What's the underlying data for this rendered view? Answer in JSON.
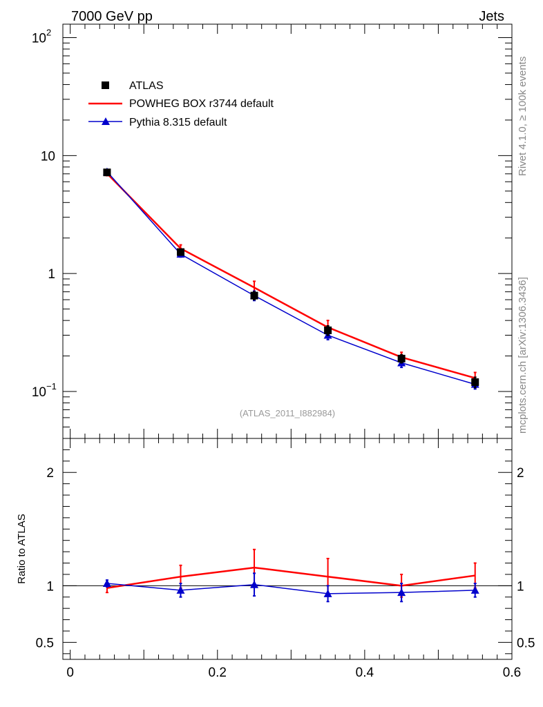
{
  "header": {
    "left": "7000 GeV pp",
    "right": "Jets"
  },
  "side_labels": {
    "rivet": "Rivet 4.1.0, ≥ 100k events",
    "mcplots": "mcplots.cern.ch [arXiv:1306.3436]"
  },
  "analysis_tag": "(ATLAS_2011_I882984)",
  "legend": [
    {
      "label": "ATLAS",
      "marker": "square",
      "color": "#000000"
    },
    {
      "label": "POWHEG BOX r3744 default",
      "marker": "line",
      "color": "#ff0000"
    },
    {
      "label": "Pythia 8.315 default",
      "marker": "triangle",
      "color": "#0000cc"
    }
  ],
  "chart_data": [
    {
      "type": "line",
      "panel": "main",
      "yscale": "log",
      "xlim": [
        -0.01,
        0.6
      ],
      "ylim": [
        0.04,
        130
      ],
      "ytick_labels": [
        {
          "value": 0.1,
          "base": "10",
          "exp": "−1"
        },
        {
          "value": 1,
          "base": "1",
          "exp": ""
        },
        {
          "value": 10,
          "base": "10",
          "exp": ""
        },
        {
          "value": 100,
          "base": "10",
          "exp": "2"
        }
      ],
      "x": [
        0.05,
        0.15,
        0.25,
        0.35,
        0.45,
        0.55
      ],
      "series": [
        {
          "name": "ATLAS",
          "values": [
            7.2,
            1.52,
            0.65,
            0.33,
            0.19,
            0.12
          ],
          "err": [
            0.25,
            0.08,
            0.05,
            0.03,
            0.015,
            0.012
          ]
        },
        {
          "name": "POWHEG BOX r3744 default",
          "values": [
            7.05,
            1.63,
            0.76,
            0.35,
            0.195,
            0.13
          ],
          "err": [
            0.3,
            0.12,
            0.1,
            0.05,
            0.02,
            0.015
          ]
        },
        {
          "name": "Pythia 8.315 default",
          "values": [
            7.3,
            1.46,
            0.65,
            0.3,
            0.175,
            0.115
          ],
          "err": [
            0.3,
            0.08,
            0.06,
            0.025,
            0.015,
            0.01
          ]
        }
      ]
    },
    {
      "type": "line",
      "panel": "ratio",
      "ylabel": "Ratio to ATLAS",
      "xlim": [
        -0.01,
        0.6
      ],
      "ylim": [
        0.35,
        2.3
      ],
      "yticks": [
        0.5,
        1,
        2
      ],
      "ytick_labels": [
        "0.5",
        "1",
        "2"
      ],
      "xticks": [
        0,
        0.2,
        0.4,
        0.6
      ],
      "xtick_labels": [
        "0",
        "0.2",
        "0.4",
        "0.6"
      ],
      "reference": 1,
      "x": [
        0.05,
        0.15,
        0.25,
        0.35,
        0.45,
        0.55
      ],
      "series": [
        {
          "name": "POWHEG BOX r3744 default",
          "values": [
            0.98,
            1.08,
            1.16,
            1.08,
            1.0,
            1.09
          ],
          "err": [
            0.04,
            0.1,
            0.16,
            0.16,
            0.1,
            0.11
          ]
        },
        {
          "name": "Pythia 8.315 default",
          "values": [
            1.02,
            0.96,
            1.01,
            0.93,
            0.94,
            0.96
          ],
          "err": [
            0.03,
            0.06,
            0.1,
            0.07,
            0.08,
            0.06
          ]
        }
      ]
    }
  ]
}
